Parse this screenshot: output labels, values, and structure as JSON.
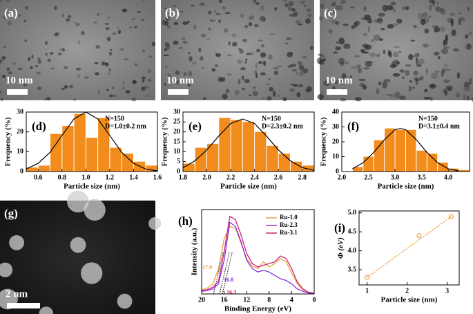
{
  "images": [
    {
      "label": "(a)",
      "scale": "10 nm"
    },
    {
      "label": "(b)",
      "scale": "10 nm"
    },
    {
      "label": "(c)",
      "scale": "10 nm"
    },
    {
      "label": "(g)",
      "scale": "2 nm"
    }
  ],
  "chart_data": [
    {
      "type": "histogram",
      "panel": "(d)",
      "color": "#f28c1c",
      "bins": [
        0.5,
        0.6,
        0.7,
        0.8,
        0.9,
        1.0,
        1.1,
        1.2,
        1.3,
        1.4,
        1.5,
        1.6
      ],
      "counts": [
        2,
        3,
        19,
        23,
        29,
        17,
        27,
        12,
        9,
        5,
        3
      ],
      "fit": {
        "color": "#000000",
        "x": [
          0.5,
          0.6,
          0.7,
          0.8,
          0.9,
          1.0,
          1.1,
          1.2,
          1.3,
          1.4,
          1.5,
          1.6
        ],
        "values": [
          1.3,
          4.1,
          9.7,
          18.2,
          26.5,
          30,
          26.5,
          18.2,
          9.7,
          4.1,
          1.3,
          0.3
        ]
      },
      "annotations": [
        "N=150",
        "D=1.0±0.2 nm"
      ],
      "xlabel": "Particle size (nm)",
      "ylabel": "Frequency (%)",
      "xlim": [
        0.5,
        1.6
      ],
      "ylim": [
        0,
        30
      ],
      "xticks": [
        0.6,
        0.8,
        {
          "value": 1,
          "label": "1.0"
        },
        1.2,
        1.4,
        1.6
      ],
      "yticks": [
        0,
        10,
        20,
        30
      ]
    },
    {
      "type": "histogram",
      "panel": "(e)",
      "color": "#f28c1c",
      "bins": [
        1.8,
        1.9,
        2.0,
        2.1,
        2.2,
        2.3,
        2.4,
        2.5,
        2.6,
        2.7,
        2.8,
        2.9
      ],
      "counts": [
        4,
        12,
        14,
        27,
        26,
        25,
        20,
        13,
        9,
        5,
        3
      ],
      "fit": {
        "color": "#000000",
        "x": [
          1.8,
          1.9,
          2.0,
          2.1,
          2.2,
          2.3,
          2.4,
          2.5,
          2.6,
          2.7,
          2.8,
          2.9
        ],
        "values": [
          1.9,
          5.4,
          10.9,
          17.9,
          24.2,
          26.5,
          24.2,
          17.9,
          10.9,
          5.4,
          2.0,
          0.6
        ]
      },
      "annotations": [
        "N=150",
        "D=2.3±0.2 nm"
      ],
      "xlabel": "Particle size (nm)",
      "ylabel": "Frequency (%)",
      "xlim": [
        1.8,
        2.9
      ],
      "ylim": [
        0,
        30
      ],
      "xticks": [
        1.8,
        {
          "value": 2,
          "label": "2.0"
        },
        2.2,
        2.4,
        2.6,
        2.8
      ],
      "yticks": [
        0,
        5,
        10,
        15,
        20,
        25,
        30
      ]
    },
    {
      "type": "histogram",
      "panel": "(f)",
      "color": "#f28c1c",
      "bins": [
        2.2,
        2.4,
        2.6,
        2.8,
        3.0,
        3.2,
        3.4,
        3.6,
        3.8,
        4.0,
        4.2,
        4.4
      ],
      "counts": [
        3,
        10,
        21,
        29,
        28,
        28,
        14,
        12,
        6,
        2,
        1
      ],
      "fit": {
        "color": "#000000",
        "x": [
          2.2,
          2.4,
          2.6,
          2.8,
          3.0,
          3.1,
          3.2,
          3.4,
          3.6,
          3.8,
          4.0,
          4.2
        ],
        "values": [
          1.8,
          5.9,
          12.9,
          21.4,
          28.1,
          29,
          28.1,
          21.4,
          12.9,
          5.9,
          1.8,
          0.4
        ]
      },
      "annotations": [
        "N=150",
        "D=3.1±0.4 nm"
      ],
      "xlabel": "Particle size (nm)",
      "ylabel": "Frequency (%)",
      "xlim": [
        2.0,
        4.4
      ],
      "ylim": [
        0,
        40
      ],
      "xticks": [
        {
          "value": 2,
          "label": "2.0"
        },
        2.5,
        {
          "value": 3,
          "label": "3.0"
        },
        3.5,
        {
          "value": 4,
          "label": "4.0"
        }
      ],
      "yticks": [
        0,
        10,
        20,
        30,
        40
      ]
    },
    {
      "type": "line",
      "panel": "(h)",
      "x": [
        20,
        19,
        18,
        17,
        16,
        15,
        14,
        13,
        12,
        11,
        10,
        9,
        8,
        7,
        6,
        5,
        4,
        3,
        2,
        1,
        0
      ],
      "series": [
        {
          "name": "Ru-1.0",
          "color": "#e8a040",
          "values": [
            5,
            7,
            12,
            30,
            65,
            80,
            78,
            60,
            42,
            33,
            30,
            38,
            32,
            36,
            42,
            38,
            25,
            12,
            5,
            2,
            1
          ]
        },
        {
          "name": "Ru-2.3",
          "color": "#8a2be2",
          "values": [
            3,
            4,
            6,
            12,
            40,
            85,
            80,
            62,
            40,
            30,
            26,
            28,
            26,
            22,
            18,
            16,
            12,
            6,
            3,
            1,
            0
          ]
        },
        {
          "name": "Ru-3.1",
          "color": "#cc2277",
          "values": [
            4,
            5,
            8,
            15,
            50,
            92,
            88,
            70,
            48,
            36,
            32,
            34,
            36,
            38,
            45,
            42,
            30,
            14,
            6,
            2,
            1
          ]
        }
      ],
      "annotations": [
        {
          "text": "17.9",
          "x": 17.9,
          "color": "#e8a040"
        },
        {
          "text": "16.8",
          "x": 16.8,
          "color": "#8a2be2"
        },
        {
          "text": "16.3",
          "x": 16.3,
          "color": "#cc2277"
        }
      ],
      "legend": "upper right",
      "xlabel": "Binding Energy (eV)",
      "ylabel": "Intensity (a.u.)",
      "xlim": [
        20,
        0
      ],
      "ylim": [
        0,
        100
      ],
      "xticks": [
        20,
        16,
        12,
        8,
        4,
        0
      ]
    },
    {
      "type": "scatter",
      "panel": "(i)",
      "color": "#f28c1c",
      "trendline": true,
      "x": [
        1.0,
        2.3,
        3.1
      ],
      "values": [
        3.3,
        4.4,
        4.9
      ],
      "xlabel": "Particle size (nm)",
      "ylabel": "Φ (eV)",
      "xlim": [
        0.8,
        3.3
      ],
      "ylim": [
        3.1,
        5.05
      ],
      "xticks": [
        1,
        2,
        3
      ],
      "yticks": [
        3.5,
        {
          "value": 4,
          "label": "4.0"
        },
        4.5,
        {
          "value": 5,
          "label": "5.0"
        }
      ]
    }
  ]
}
